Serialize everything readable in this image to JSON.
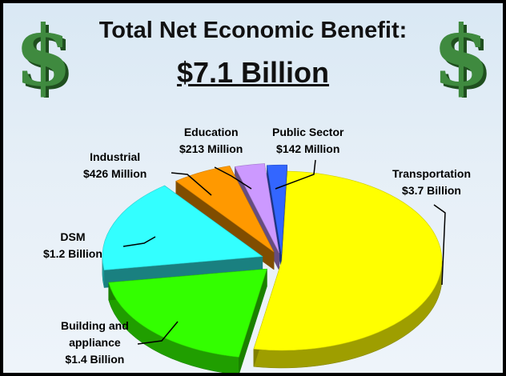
{
  "title": "Total Net Economic Benefit:",
  "subtitle": "$7.1 Billion",
  "chart_data": {
    "type": "pie",
    "title": "Total Net Economic Benefit:",
    "subtitle": "$7.1 Billion",
    "unit": "Million USD",
    "slices": [
      {
        "name": "Transportation",
        "value": 3700,
        "value_label": "$3.7 Billion",
        "color": "#ffff00"
      },
      {
        "name": "Building and appliance",
        "value": 1400,
        "value_label": "$1.4 Billion",
        "color": "#33ff00"
      },
      {
        "name": "DSM",
        "value": 1200,
        "value_label": "$1.2 Billion",
        "color": "#33ffff"
      },
      {
        "name": "Industrial",
        "value": 426,
        "value_label": "$426 Million",
        "color": "#ff9900"
      },
      {
        "name": "Education",
        "value": 213,
        "value_label": "$213 Million",
        "color": "#cc99ff"
      },
      {
        "name": "Public Sector",
        "value": 142,
        "value_label": "$142 Million",
        "color": "#3366ff"
      }
    ],
    "legend": "none",
    "style": "3d-exploded"
  },
  "decor": {
    "left_icon": "dollar-sign-icon",
    "right_icon": "dollar-sign-icon",
    "dollar_color": "#2e6b2e"
  }
}
